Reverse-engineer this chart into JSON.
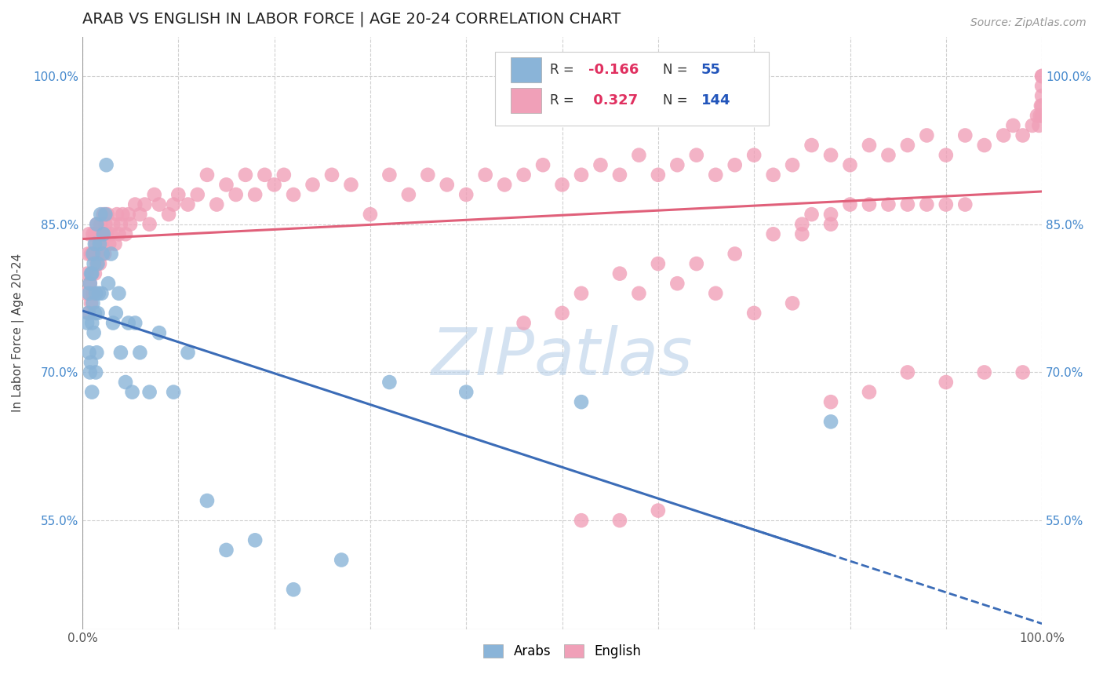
{
  "title": "ARAB VS ENGLISH IN LABOR FORCE | AGE 20-24 CORRELATION CHART",
  "source": "Source: ZipAtlas.com",
  "ylabel": "In Labor Force | Age 20-24",
  "xlim": [
    0.0,
    1.0
  ],
  "ylim": [
    0.44,
    1.04
  ],
  "y_ticks": [
    0.55,
    0.7,
    0.85,
    1.0
  ],
  "y_tick_labels": [
    "55.0%",
    "70.0%",
    "85.0%",
    "100.0%"
  ],
  "arab_color": "#8ab4d8",
  "english_color": "#f0a0b8",
  "arab_line_color": "#3b6cb7",
  "english_line_color": "#e0607a",
  "arab_R": -0.166,
  "arab_N": 55,
  "english_R": 0.327,
  "english_N": 144,
  "watermark_text": "ZIPatlas",
  "watermark_color": "#b8d0e8",
  "background_color": "#ffffff",
  "grid_color": "#d0d0d0",
  "arab_x": [
    0.005,
    0.006,
    0.007,
    0.007,
    0.008,
    0.008,
    0.009,
    0.009,
    0.01,
    0.01,
    0.01,
    0.011,
    0.011,
    0.012,
    0.012,
    0.013,
    0.013,
    0.014,
    0.014,
    0.015,
    0.015,
    0.016,
    0.016,
    0.017,
    0.018,
    0.019,
    0.02,
    0.021,
    0.022,
    0.024,
    0.025,
    0.027,
    0.03,
    0.032,
    0.035,
    0.038,
    0.04,
    0.045,
    0.048,
    0.052,
    0.055,
    0.06,
    0.07,
    0.08,
    0.095,
    0.11,
    0.13,
    0.15,
    0.18,
    0.22,
    0.27,
    0.32,
    0.4,
    0.52,
    0.78
  ],
  "arab_y": [
    0.75,
    0.76,
    0.72,
    0.78,
    0.7,
    0.79,
    0.71,
    0.8,
    0.68,
    0.75,
    0.8,
    0.77,
    0.82,
    0.74,
    0.81,
    0.76,
    0.83,
    0.7,
    0.78,
    0.72,
    0.85,
    0.76,
    0.81,
    0.78,
    0.83,
    0.86,
    0.78,
    0.82,
    0.84,
    0.86,
    0.91,
    0.79,
    0.82,
    0.75,
    0.76,
    0.78,
    0.72,
    0.69,
    0.75,
    0.68,
    0.75,
    0.72,
    0.68,
    0.74,
    0.68,
    0.72,
    0.57,
    0.52,
    0.53,
    0.48,
    0.51,
    0.69,
    0.68,
    0.67,
    0.65
  ],
  "english_x": [
    0.004,
    0.005,
    0.006,
    0.007,
    0.007,
    0.008,
    0.009,
    0.009,
    0.01,
    0.011,
    0.011,
    0.012,
    0.013,
    0.013,
    0.014,
    0.015,
    0.015,
    0.016,
    0.017,
    0.018,
    0.019,
    0.02,
    0.021,
    0.022,
    0.023,
    0.024,
    0.025,
    0.026,
    0.028,
    0.03,
    0.032,
    0.034,
    0.036,
    0.038,
    0.04,
    0.042,
    0.045,
    0.048,
    0.05,
    0.055,
    0.06,
    0.065,
    0.07,
    0.075,
    0.08,
    0.09,
    0.095,
    0.1,
    0.11,
    0.12,
    0.13,
    0.14,
    0.15,
    0.16,
    0.17,
    0.18,
    0.19,
    0.2,
    0.21,
    0.22,
    0.24,
    0.26,
    0.28,
    0.3,
    0.32,
    0.34,
    0.36,
    0.38,
    0.4,
    0.42,
    0.44,
    0.46,
    0.48,
    0.5,
    0.52,
    0.54,
    0.56,
    0.58,
    0.6,
    0.62,
    0.64,
    0.66,
    0.68,
    0.7,
    0.72,
    0.74,
    0.76,
    0.78,
    0.8,
    0.82,
    0.84,
    0.86,
    0.88,
    0.9,
    0.92,
    0.94,
    0.96,
    0.97,
    0.98,
    0.99,
    0.995,
    0.997,
    0.998,
    0.999,
    1.0,
    1.0,
    1.0,
    1.0,
    1.0,
    1.0,
    0.75,
    0.76,
    0.78,
    0.8,
    0.82,
    0.84,
    0.86,
    0.88,
    0.9,
    0.92,
    0.52,
    0.56,
    0.6,
    0.64,
    0.68,
    0.72,
    0.75,
    0.78,
    0.52,
    0.56,
    0.6,
    0.46,
    0.5,
    0.58,
    0.62,
    0.66,
    0.7,
    0.74,
    0.78,
    0.82,
    0.86,
    0.9,
    0.94,
    0.98
  ],
  "english_y": [
    0.78,
    0.8,
    0.82,
    0.76,
    0.84,
    0.79,
    0.77,
    0.82,
    0.8,
    0.78,
    0.84,
    0.82,
    0.8,
    0.84,
    0.83,
    0.81,
    0.85,
    0.82,
    0.84,
    0.81,
    0.85,
    0.83,
    0.84,
    0.86,
    0.82,
    0.85,
    0.84,
    0.86,
    0.83,
    0.84,
    0.85,
    0.83,
    0.86,
    0.84,
    0.85,
    0.86,
    0.84,
    0.86,
    0.85,
    0.87,
    0.86,
    0.87,
    0.85,
    0.88,
    0.87,
    0.86,
    0.87,
    0.88,
    0.87,
    0.88,
    0.9,
    0.87,
    0.89,
    0.88,
    0.9,
    0.88,
    0.9,
    0.89,
    0.9,
    0.88,
    0.89,
    0.9,
    0.89,
    0.86,
    0.9,
    0.88,
    0.9,
    0.89,
    0.88,
    0.9,
    0.89,
    0.9,
    0.91,
    0.89,
    0.9,
    0.91,
    0.9,
    0.92,
    0.9,
    0.91,
    0.92,
    0.9,
    0.91,
    0.92,
    0.9,
    0.91,
    0.93,
    0.92,
    0.91,
    0.93,
    0.92,
    0.93,
    0.94,
    0.92,
    0.94,
    0.93,
    0.94,
    0.95,
    0.94,
    0.95,
    0.96,
    0.95,
    0.96,
    0.97,
    0.96,
    0.97,
    0.98,
    0.99,
    1.0,
    1.0,
    0.84,
    0.86,
    0.86,
    0.87,
    0.87,
    0.87,
    0.87,
    0.87,
    0.87,
    0.87,
    0.78,
    0.8,
    0.81,
    0.81,
    0.82,
    0.84,
    0.85,
    0.85,
    0.55,
    0.55,
    0.56,
    0.75,
    0.76,
    0.78,
    0.79,
    0.78,
    0.76,
    0.77,
    0.67,
    0.68,
    0.7,
    0.69,
    0.7,
    0.7
  ]
}
